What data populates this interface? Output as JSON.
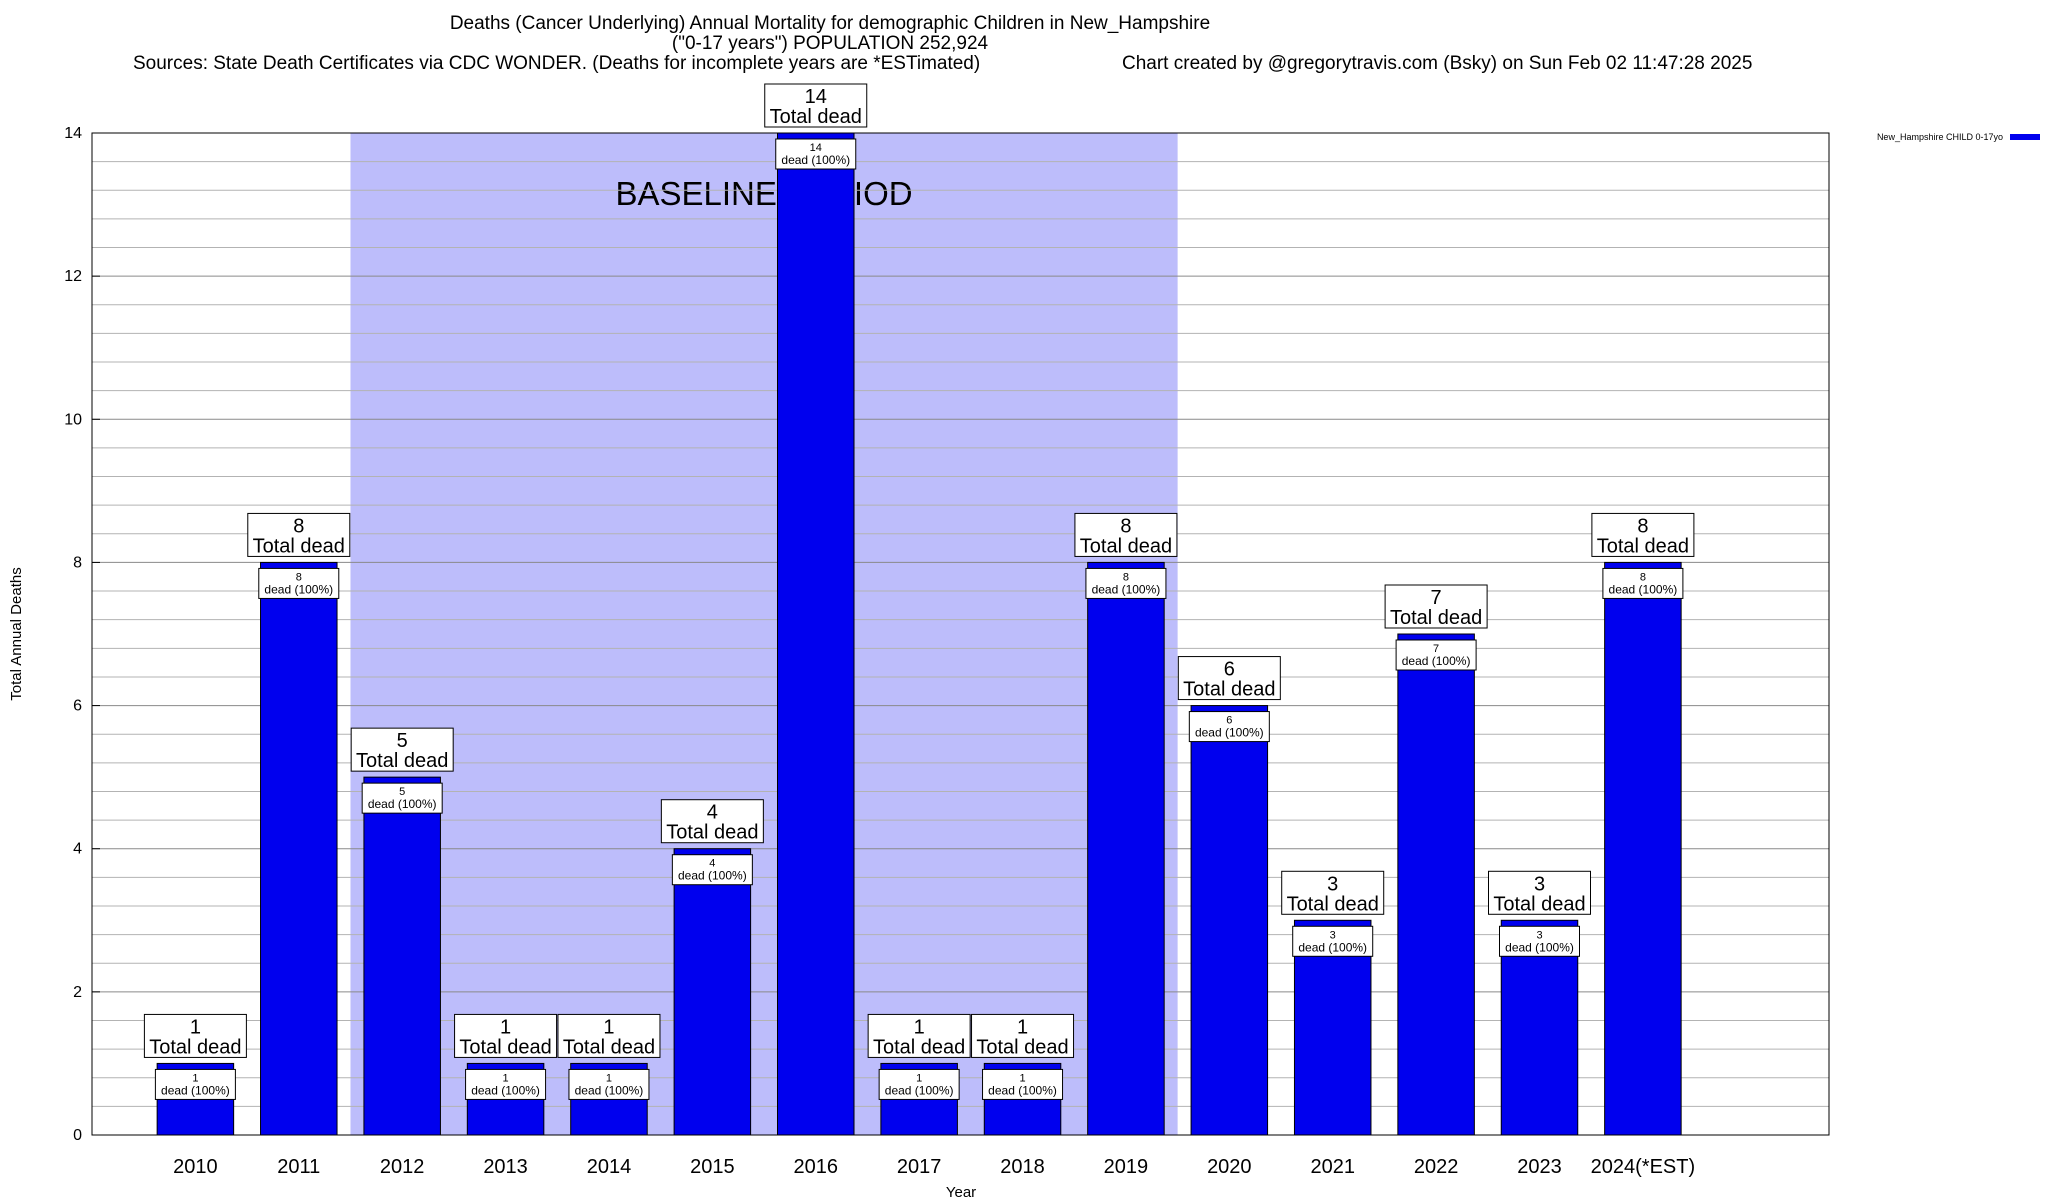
{
  "chart_data": {
    "type": "bar",
    "title": "Deaths (Cancer Underlying) Annual Mortality for demographic Children in New_Hampshire",
    "subtitle": "(\"0-17 years\") POPULATION 252,924",
    "source": "Sources: State Death Certificates via CDC WONDER. (Deaths for incomplete years are *ESTimated)",
    "credit": "Chart created by @gregorytravis.com (Bsky) on Sun Feb 02 11:47:28 2025",
    "xlabel": "Year",
    "ylabel": "Total Annual Deaths",
    "ylim": [
      0,
      14
    ],
    "yticks": [
      "0",
      "2",
      "4",
      "6",
      "8",
      "10",
      "12",
      "14"
    ],
    "categories": [
      "2010",
      "2011",
      "2012",
      "2013",
      "2014",
      "2015",
      "2016",
      "2017",
      "2018",
      "2019",
      "2020",
      "2021",
      "2022",
      "2023",
      "2024(*EST)"
    ],
    "series": [
      {
        "name": "New_Hampshire CHILD 0-17yo",
        "values": [
          1,
          8,
          5,
          1,
          1,
          4,
          14,
          1,
          1,
          8,
          6,
          3,
          7,
          3,
          8
        ],
        "color": "#0000ee"
      }
    ],
    "value_labels": [
      "1",
      "8",
      "5",
      "1",
      "1",
      "4",
      "14",
      "1",
      "1",
      "8",
      "6",
      "3",
      "7",
      "3",
      "8"
    ],
    "total_label": "Total dead",
    "inner_label": "dead (100%)",
    "baseline": {
      "label": "BASELINE PERIOD",
      "start": "2012",
      "end": "2019",
      "color": "#bdbdfb"
    },
    "legend_position": "top-right",
    "grid": true
  }
}
